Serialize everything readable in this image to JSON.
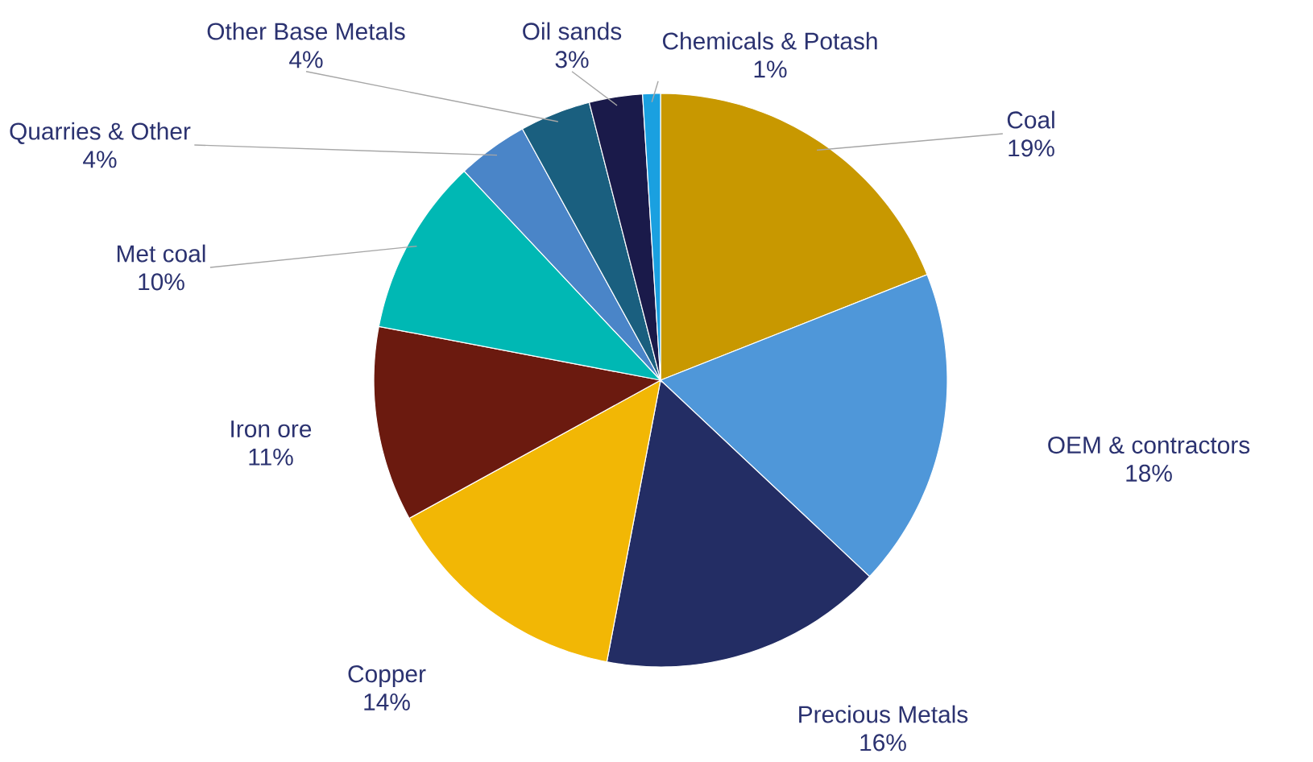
{
  "chart_data": {
    "type": "pie",
    "categories": [
      "Coal",
      "OEM & contractors",
      "Precious Metals",
      "Copper",
      "Iron ore",
      "Met coal",
      "Quarries & Other",
      "Other Base Metals",
      "Oil sands",
      "Chemicals & Potash"
    ],
    "values": [
      19,
      18,
      16,
      14,
      11,
      10,
      4,
      4,
      3,
      1
    ],
    "colors": [
      "#c89800",
      "#4f97d9",
      "#232d64",
      "#f2b705",
      "#6b1a0f",
      "#00b8b4",
      "#4a85c8",
      "#1a5f7f",
      "#1a1a4a",
      "#1aa0e0"
    ],
    "value_labels": [
      "19%",
      "18%",
      "16%",
      "14%",
      "11%",
      "10%",
      "4%",
      "4%",
      "3%",
      "1%"
    ]
  }
}
